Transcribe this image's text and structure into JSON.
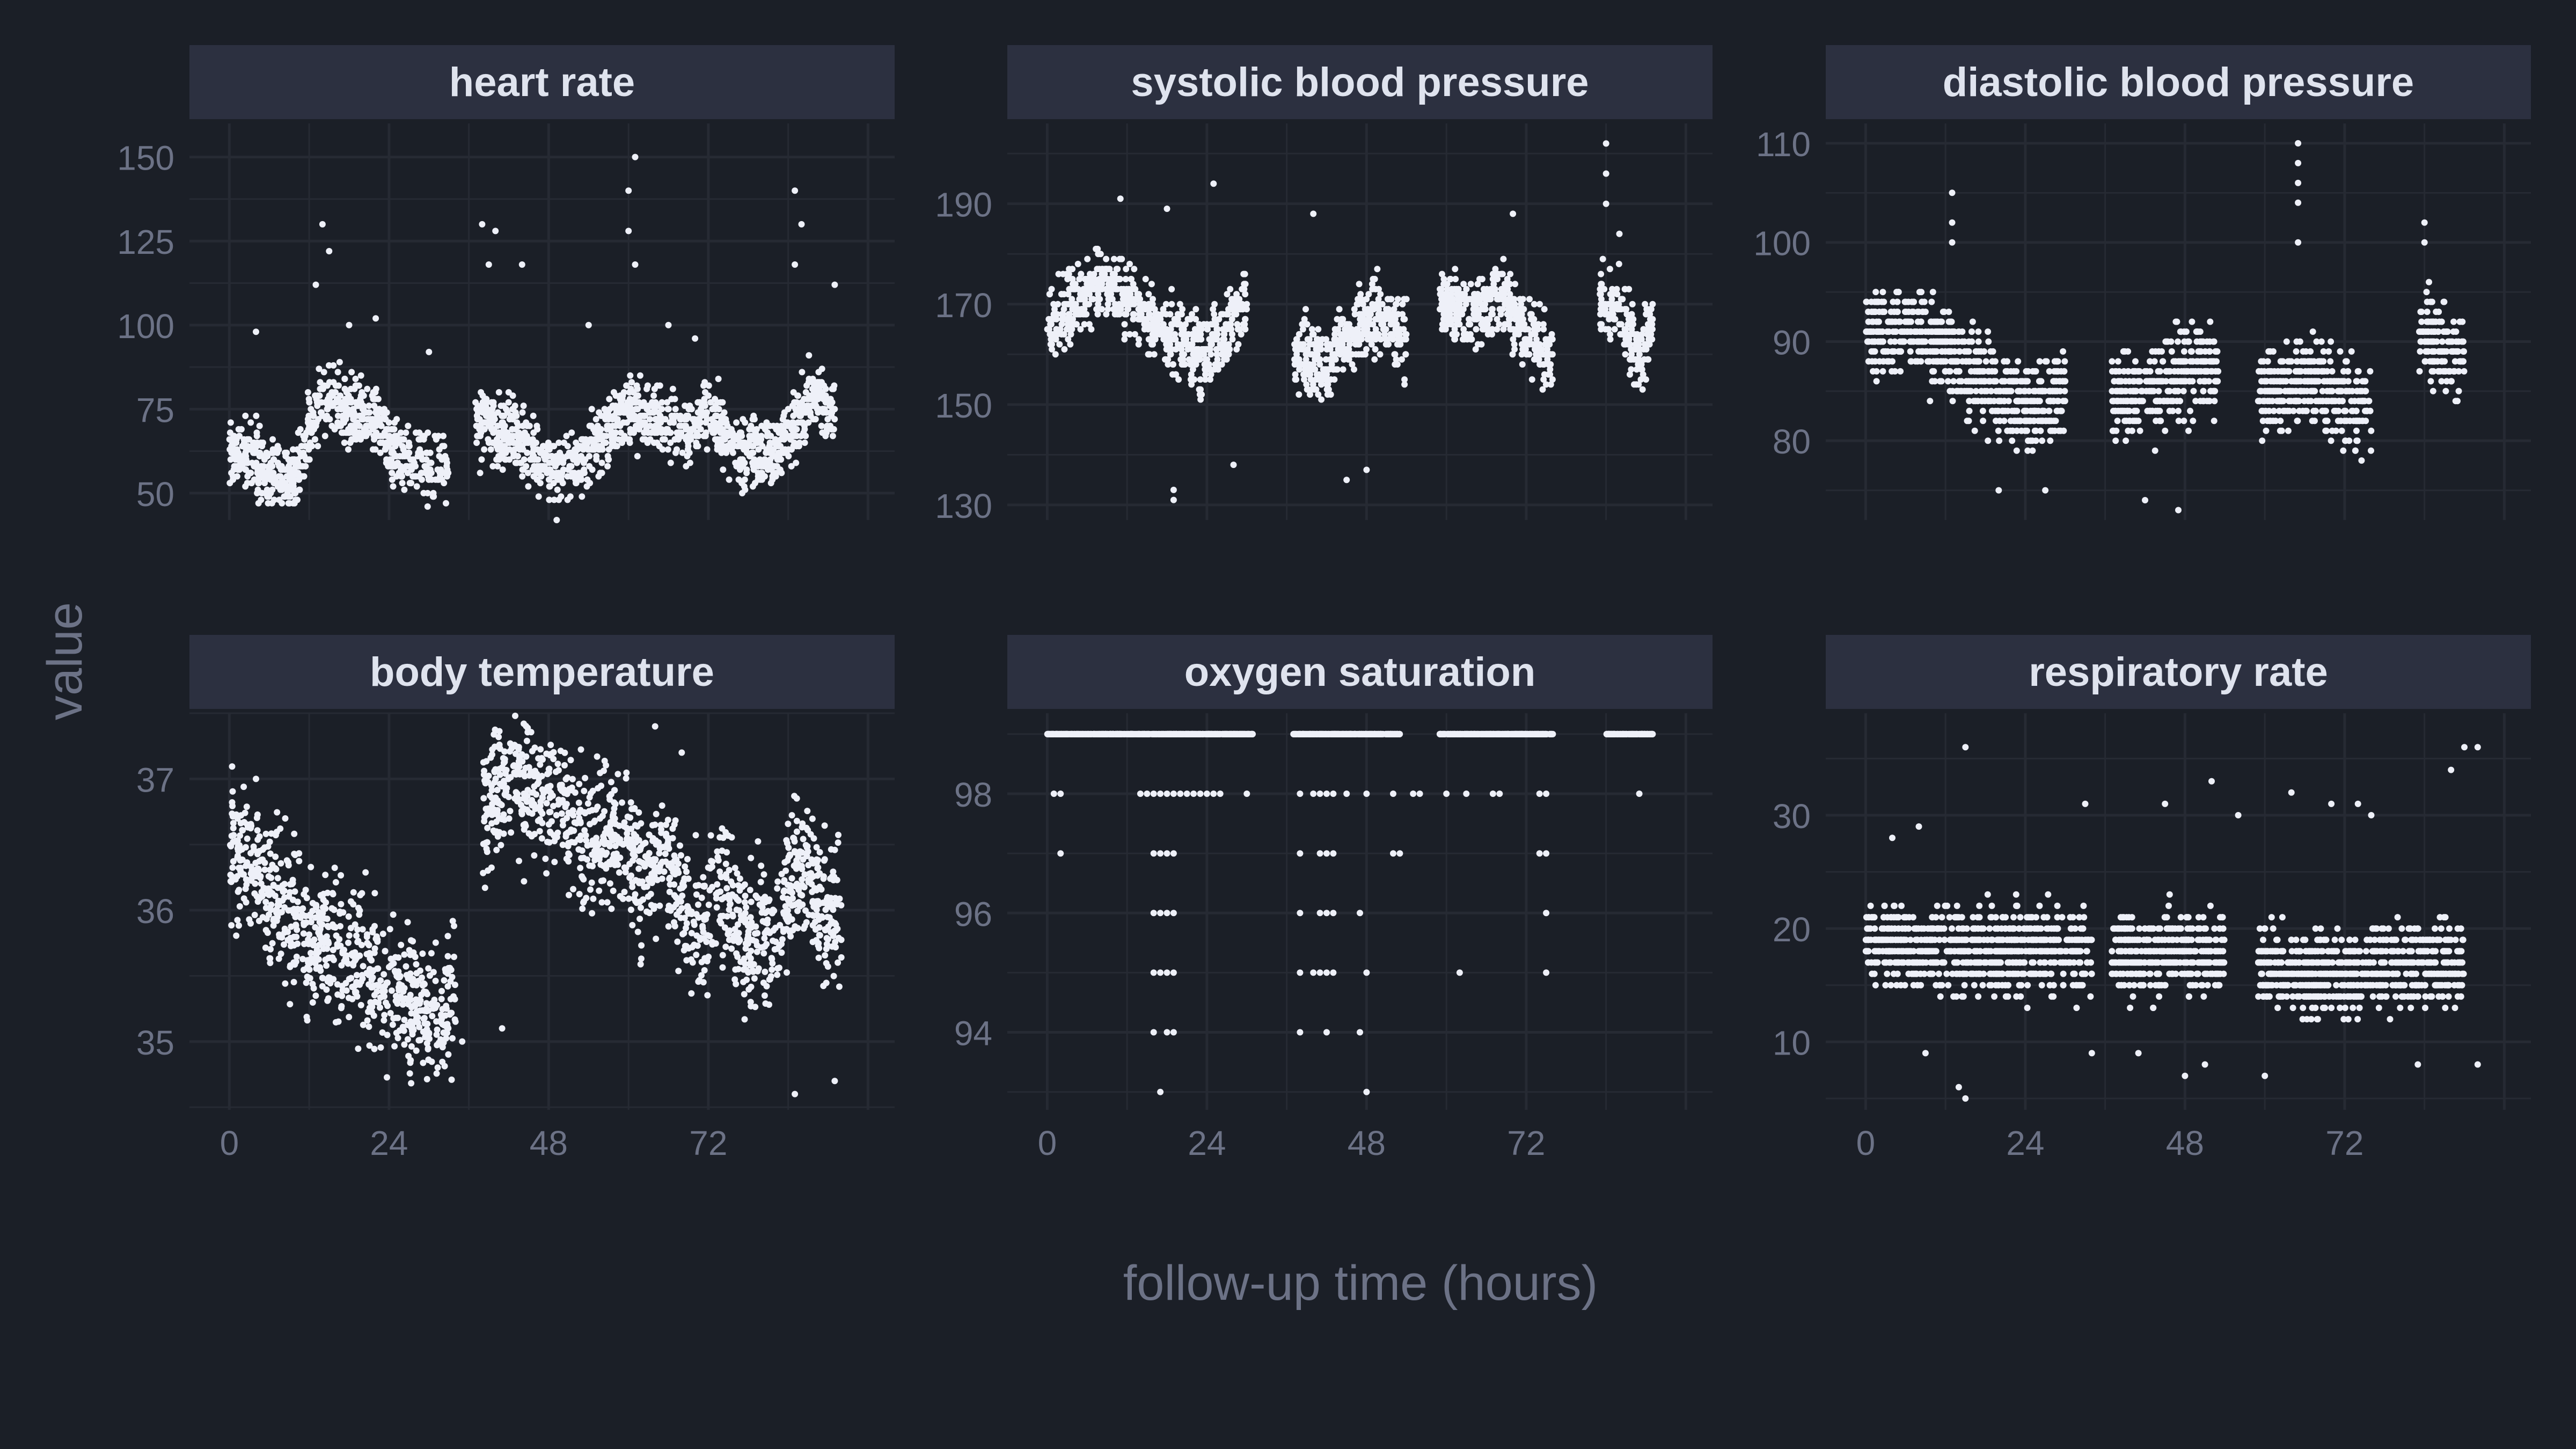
{
  "figure": {
    "xlabel": "follow-up time (hours)",
    "ylabel": "value",
    "colors": {
      "background": "#1b1f27",
      "strip": "#2c3040",
      "strip_text": "#dfe3ee",
      "grid": "#262a33",
      "tick_text": "#6c7286",
      "axis_title": "#6c7286",
      "points": "#eef0f8"
    }
  },
  "chart_data": [
    {
      "type": "scatter",
      "title": "heart rate",
      "xlim": [
        -6,
        100
      ],
      "x_ticks": [
        0,
        24,
        48,
        72
      ],
      "ylim": [
        42,
        160
      ],
      "y_ticks": [
        50,
        75,
        100,
        125,
        150
      ],
      "segments": [
        [
          0,
          33
        ],
        [
          37,
          91
        ]
      ],
      "y_step": 1,
      "step_kind": "none",
      "trend": [
        [
          0,
          63
        ],
        [
          6,
          56
        ],
        [
          10,
          53
        ],
        [
          12,
          70
        ],
        [
          14,
          78
        ],
        [
          18,
          74
        ],
        [
          22,
          73
        ],
        [
          25,
          62
        ],
        [
          30,
          58
        ],
        [
          33,
          57
        ],
        [
          37,
          72
        ],
        [
          42,
          67
        ],
        [
          46,
          60
        ],
        [
          50,
          56
        ],
        [
          52,
          58
        ],
        [
          56,
          66
        ],
        [
          60,
          74
        ],
        [
          64,
          72
        ],
        [
          68,
          68
        ],
        [
          72,
          74
        ],
        [
          76,
          64
        ],
        [
          80,
          60
        ],
        [
          84,
          66
        ],
        [
          86,
          74
        ],
        [
          88,
          80
        ],
        [
          91,
          72
        ]
      ],
      "spread": 14,
      "outlier_dots": [
        [
          14,
          130
        ],
        [
          15,
          122
        ],
        [
          13,
          112
        ],
        [
          38,
          130
        ],
        [
          39,
          118
        ],
        [
          40,
          128
        ],
        [
          60,
          140
        ],
        [
          61,
          150
        ],
        [
          60,
          128
        ],
        [
          61,
          118
        ],
        [
          85,
          140
        ],
        [
          86,
          130
        ],
        [
          85,
          118
        ],
        [
          4,
          98
        ],
        [
          18,
          100
        ],
        [
          22,
          102
        ],
        [
          30,
          92
        ],
        [
          54,
          100
        ],
        [
          66,
          100
        ],
        [
          70,
          96
        ],
        [
          44,
          118
        ],
        [
          91,
          112
        ]
      ]
    },
    {
      "type": "scatter",
      "title": "systolic blood pressure",
      "xlim": [
        -6,
        100
      ],
      "x_ticks": [
        0,
        24,
        48,
        72
      ],
      "ylim": [
        127,
        206
      ],
      "y_ticks": [
        130,
        150,
        170,
        190
      ],
      "segments": [
        [
          0,
          30
        ],
        [
          37,
          54
        ],
        [
          59,
          76
        ],
        [
          83,
          91
        ]
      ],
      "y_step": 1,
      "step_kind": "none",
      "trend": [
        [
          0,
          166
        ],
        [
          4,
          170
        ],
        [
          8,
          175
        ],
        [
          12,
          172
        ],
        [
          16,
          166
        ],
        [
          20,
          162
        ],
        [
          24,
          160
        ],
        [
          28,
          167
        ],
        [
          30,
          170
        ],
        [
          37,
          160
        ],
        [
          42,
          158
        ],
        [
          46,
          166
        ],
        [
          50,
          168
        ],
        [
          54,
          163
        ],
        [
          59,
          170
        ],
        [
          64,
          168
        ],
        [
          68,
          172
        ],
        [
          72,
          165
        ],
        [
          76,
          158
        ],
        [
          83,
          172
        ],
        [
          86,
          168
        ],
        [
          89,
          160
        ],
        [
          91,
          166
        ]
      ],
      "spread": 10,
      "outlier_dots": [
        [
          19,
          131
        ],
        [
          19,
          133
        ],
        [
          28,
          138
        ],
        [
          48,
          137
        ],
        [
          45,
          135
        ],
        [
          84,
          202
        ],
        [
          84,
          196
        ],
        [
          84,
          190
        ],
        [
          25,
          194
        ],
        [
          40,
          188
        ],
        [
          70,
          188
        ],
        [
          86,
          184
        ],
        [
          18,
          189
        ],
        [
          11,
          191
        ]
      ]
    },
    {
      "type": "scatter",
      "title": "diastolic blood pressure",
      "xlim": [
        -6,
        100
      ],
      "x_ticks": [
        0,
        24,
        48,
        72
      ],
      "ylim": [
        72,
        112
      ],
      "y_ticks": [
        80,
        90,
        100,
        110
      ],
      "segments": [
        [
          0,
          30
        ],
        [
          37,
          53
        ],
        [
          59,
          76
        ],
        [
          83,
          90
        ]
      ],
      "y_step": 1,
      "step_kind": "none",
      "trend": [
        [
          0,
          91
        ],
        [
          6,
          91
        ],
        [
          10,
          90
        ],
        [
          14,
          88
        ],
        [
          18,
          86
        ],
        [
          22,
          84
        ],
        [
          26,
          83
        ],
        [
          30,
          86
        ],
        [
          37,
          84
        ],
        [
          42,
          85
        ],
        [
          46,
          86
        ],
        [
          50,
          88
        ],
        [
          53,
          87
        ],
        [
          59,
          85
        ],
        [
          64,
          85
        ],
        [
          68,
          86
        ],
        [
          72,
          84
        ],
        [
          76,
          83
        ],
        [
          83,
          91
        ],
        [
          87,
          89
        ],
        [
          90,
          88
        ]
      ],
      "spread": 6,
      "outlier_dots": [
        [
          13,
          105
        ],
        [
          13,
          102
        ],
        [
          13,
          100
        ],
        [
          65,
          110
        ],
        [
          65,
          108
        ],
        [
          65,
          106
        ],
        [
          65,
          104
        ],
        [
          65,
          100
        ],
        [
          84,
          102
        ],
        [
          84,
          100
        ],
        [
          42,
          74
        ],
        [
          47,
          73
        ],
        [
          20,
          75
        ],
        [
          27,
          75
        ]
      ]
    },
    {
      "type": "scatter",
      "title": "body temperature",
      "xlim": [
        -6,
        100
      ],
      "x_ticks": [
        0,
        24,
        48,
        72
      ],
      "ylim": [
        34.48,
        37.5
      ],
      "y_ticks": [
        35,
        36,
        37
      ],
      "segments": [
        [
          0,
          34
        ],
        [
          38,
          92
        ]
      ],
      "y_step": 0.1,
      "step_kind": "none",
      "trend": [
        [
          0,
          36.6
        ],
        [
          4,
          36.3
        ],
        [
          8,
          36.0
        ],
        [
          12,
          35.8
        ],
        [
          16,
          35.8
        ],
        [
          20,
          35.6
        ],
        [
          24,
          35.4
        ],
        [
          28,
          35.3
        ],
        [
          32,
          35.2
        ],
        [
          34,
          35.3
        ],
        [
          38,
          36.7
        ],
        [
          42,
          37.1
        ],
        [
          46,
          36.9
        ],
        [
          50,
          36.8
        ],
        [
          54,
          36.5
        ],
        [
          58,
          36.6
        ],
        [
          62,
          36.3
        ],
        [
          66,
          36.4
        ],
        [
          70,
          35.8
        ],
        [
          74,
          36.2
        ],
        [
          78,
          35.7
        ],
        [
          82,
          35.8
        ],
        [
          86,
          36.4
        ],
        [
          90,
          35.9
        ],
        [
          92,
          36.0
        ]
      ],
      "spread": 0.7,
      "outlier_dots": [
        [
          64,
          37.4
        ],
        [
          68,
          37.2
        ],
        [
          35,
          35.0
        ],
        [
          41,
          35.1
        ],
        [
          91,
          34.7
        ],
        [
          85,
          34.6
        ],
        [
          4,
          37.0
        ]
      ]
    },
    {
      "type": "scatter",
      "title": "oxygen saturation",
      "xlim": [
        -6,
        100
      ],
      "x_ticks": [
        0,
        24,
        48,
        72
      ],
      "ylim": [
        92.7,
        99.35
      ],
      "y_ticks": [
        94,
        96,
        98
      ],
      "segments": [
        [
          0,
          31
        ],
        [
          37,
          53
        ],
        [
          59,
          76
        ],
        [
          84,
          91
        ]
      ],
      "y_step": 1,
      "step_kind": "none",
      "trend": [
        [
          0,
          99
        ],
        [
          91,
          99
        ]
      ],
      "spread": 0,
      "outlier_dots": [
        [
          1,
          98
        ],
        [
          2,
          98
        ],
        [
          14,
          98
        ],
        [
          15,
          98
        ],
        [
          16,
          98
        ],
        [
          17,
          98
        ],
        [
          18,
          98
        ],
        [
          19,
          98
        ],
        [
          20,
          98
        ],
        [
          21,
          98
        ],
        [
          22,
          98
        ],
        [
          23,
          98
        ],
        [
          24,
          98
        ],
        [
          25,
          98
        ],
        [
          26,
          98
        ],
        [
          30,
          98
        ],
        [
          38,
          98
        ],
        [
          40,
          98
        ],
        [
          41,
          98
        ],
        [
          42,
          98
        ],
        [
          43,
          98
        ],
        [
          45,
          98
        ],
        [
          48,
          98
        ],
        [
          52,
          98
        ],
        [
          55,
          98
        ],
        [
          56,
          98
        ],
        [
          60,
          98
        ],
        [
          63,
          98
        ],
        [
          67,
          98
        ],
        [
          68,
          98
        ],
        [
          74,
          98
        ],
        [
          75,
          98
        ],
        [
          89,
          98
        ],
        [
          2,
          97
        ],
        [
          16,
          97
        ],
        [
          17,
          97
        ],
        [
          18,
          97
        ],
        [
          19,
          97
        ],
        [
          38,
          97
        ],
        [
          41,
          97
        ],
        [
          42,
          97
        ],
        [
          43,
          97
        ],
        [
          52,
          97
        ],
        [
          53,
          97
        ],
        [
          74,
          97
        ],
        [
          75,
          97
        ],
        [
          16,
          96
        ],
        [
          17,
          96
        ],
        [
          18,
          96
        ],
        [
          19,
          96
        ],
        [
          38,
          96
        ],
        [
          41,
          96
        ],
        [
          42,
          96
        ],
        [
          43,
          96
        ],
        [
          47,
          96
        ],
        [
          75,
          96
        ],
        [
          16,
          95
        ],
        [
          17,
          95
        ],
        [
          18,
          95
        ],
        [
          19,
          95
        ],
        [
          38,
          95
        ],
        [
          40,
          95
        ],
        [
          41,
          95
        ],
        [
          42,
          95
        ],
        [
          43,
          95
        ],
        [
          48,
          95
        ],
        [
          62,
          95
        ],
        [
          75,
          95
        ],
        [
          16,
          94
        ],
        [
          18,
          94
        ],
        [
          19,
          94
        ],
        [
          38,
          94
        ],
        [
          42,
          94
        ],
        [
          47,
          94
        ],
        [
          17,
          93
        ],
        [
          48,
          93
        ]
      ]
    },
    {
      "type": "scatter",
      "title": "respiratory rate",
      "xlim": [
        -6,
        100
      ],
      "x_ticks": [
        0,
        24,
        48,
        72
      ],
      "ylim": [
        4,
        39
      ],
      "y_ticks": [
        10,
        20,
        30
      ],
      "segments": [
        [
          0,
          34
        ],
        [
          37,
          54
        ],
        [
          59,
          90
        ]
      ],
      "y_step": 1,
      "step_kind": "none",
      "trend": [
        [
          0,
          19
        ],
        [
          10,
          18
        ],
        [
          20,
          18
        ],
        [
          30,
          18
        ],
        [
          34,
          18
        ],
        [
          37,
          18
        ],
        [
          46,
          18
        ],
        [
          54,
          18
        ],
        [
          59,
          17
        ],
        [
          70,
          16
        ],
        [
          80,
          17
        ],
        [
          90,
          17
        ]
      ],
      "spread": 5,
      "outlier_dots": [
        [
          15,
          36
        ],
        [
          90,
          36
        ],
        [
          92,
          36
        ],
        [
          88,
          34
        ],
        [
          52,
          33
        ],
        [
          64,
          32
        ],
        [
          70,
          31
        ],
        [
          74,
          31
        ],
        [
          76,
          30
        ],
        [
          33,
          31
        ],
        [
          45,
          31
        ],
        [
          56,
          30
        ],
        [
          8,
          29
        ],
        [
          4,
          28
        ],
        [
          15,
          5
        ],
        [
          41,
          9
        ],
        [
          34,
          9
        ],
        [
          9,
          9
        ],
        [
          48,
          7
        ],
        [
          51,
          8
        ],
        [
          60,
          7
        ],
        [
          83,
          8
        ],
        [
          92,
          8
        ],
        [
          14,
          6
        ]
      ]
    }
  ]
}
